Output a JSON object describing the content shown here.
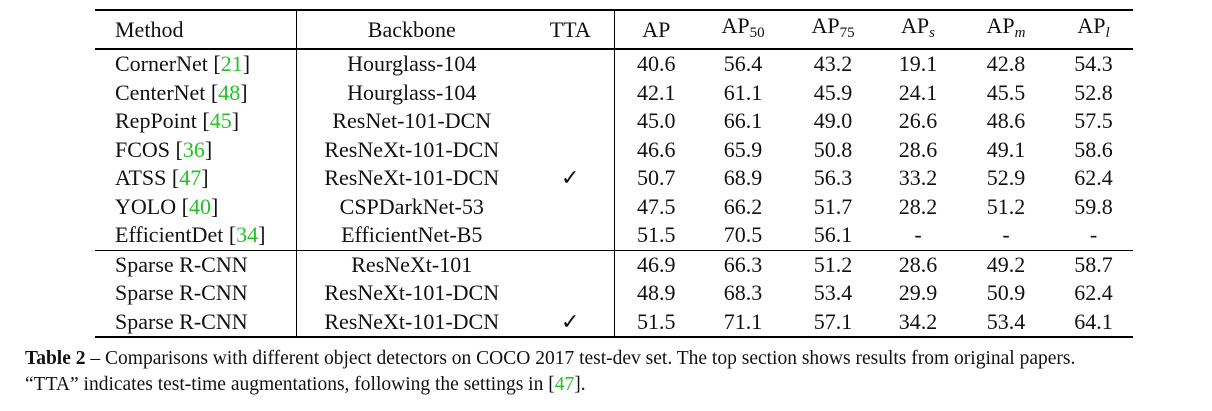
{
  "header": {
    "method": "Method",
    "backbone": "Backbone",
    "tta": "TTA",
    "ap": "AP",
    "ap50_base": "AP",
    "ap50_sub": "50",
    "ap75_base": "AP",
    "ap75_sub": "75",
    "aps_base": "AP",
    "aps_sub": "s",
    "apm_base": "AP",
    "apm_sub": "m",
    "apl_base": "AP",
    "apl_sub": "l"
  },
  "rows": [
    {
      "name": "CornerNet",
      "ref": "21",
      "backbone": "Hourglass-104",
      "tta": "",
      "ap": "40.6",
      "ap50": "56.4",
      "ap75": "43.2",
      "aps": "19.1",
      "apm": "42.8",
      "apl": "54.3"
    },
    {
      "name": "CenterNet",
      "ref": "48",
      "backbone": "Hourglass-104",
      "tta": "",
      "ap": "42.1",
      "ap50": "61.1",
      "ap75": "45.9",
      "aps": "24.1",
      "apm": "45.5",
      "apl": "52.8"
    },
    {
      "name": "RepPoint",
      "ref": "45",
      "backbone": "ResNet-101-DCN",
      "tta": "",
      "ap": "45.0",
      "ap50": "66.1",
      "ap75": "49.0",
      "aps": "26.6",
      "apm": "48.6",
      "apl": "57.5"
    },
    {
      "name": "FCOS",
      "ref": "36",
      "backbone": "ResNeXt-101-DCN",
      "tta": "",
      "ap": "46.6",
      "ap50": "65.9",
      "ap75": "50.8",
      "aps": "28.6",
      "apm": "49.1",
      "apl": "58.6"
    },
    {
      "name": "ATSS",
      "ref": "47",
      "backbone": "ResNeXt-101-DCN",
      "tta": "✓",
      "ap": "50.7",
      "ap50": "68.9",
      "ap75": "56.3",
      "aps": "33.2",
      "apm": "52.9",
      "apl": "62.4"
    },
    {
      "name": "YOLO",
      "ref": "40",
      "backbone": "CSPDarkNet-53",
      "tta": "",
      "ap": "47.5",
      "ap50": "66.2",
      "ap75": "51.7",
      "aps": "28.2",
      "apm": "51.2",
      "apl": "59.8"
    },
    {
      "name": "EfficientDet",
      "ref": "34",
      "backbone": "EfficientNet-B5",
      "tta": "",
      "ap": "51.5",
      "ap50": "70.5",
      "ap75": "56.1",
      "aps": "-",
      "apm": "-",
      "apl": "-"
    },
    {
      "name": "Sparse R-CNN",
      "ref": "",
      "backbone": "ResNeXt-101",
      "tta": "",
      "ap": "46.9",
      "ap50": "66.3",
      "ap75": "51.2",
      "aps": "28.6",
      "apm": "49.2",
      "apl": "58.7"
    },
    {
      "name": "Sparse R-CNN",
      "ref": "",
      "backbone": "ResNeXt-101-DCN",
      "tta": "",
      "ap": "48.9",
      "ap50": "68.3",
      "ap75": "53.4",
      "aps": "29.9",
      "apm": "50.9",
      "apl": "62.4"
    },
    {
      "name": "Sparse R-CNN",
      "ref": "",
      "backbone": "ResNeXt-101-DCN",
      "tta": "✓",
      "ap": "51.5",
      "ap50": "71.1",
      "ap75": "57.1",
      "aps": "34.2",
      "apm": "53.4",
      "apl": "64.1"
    }
  ],
  "caption": {
    "label": "Table 2",
    "text1": " – Comparisons with different object detectors on COCO 2017 test-dev set. The top section shows results from original papers.",
    "text2": "“TTA” indicates test-time augmentations, following the settings in [",
    "ref": "47",
    "text3": "]."
  }
}
